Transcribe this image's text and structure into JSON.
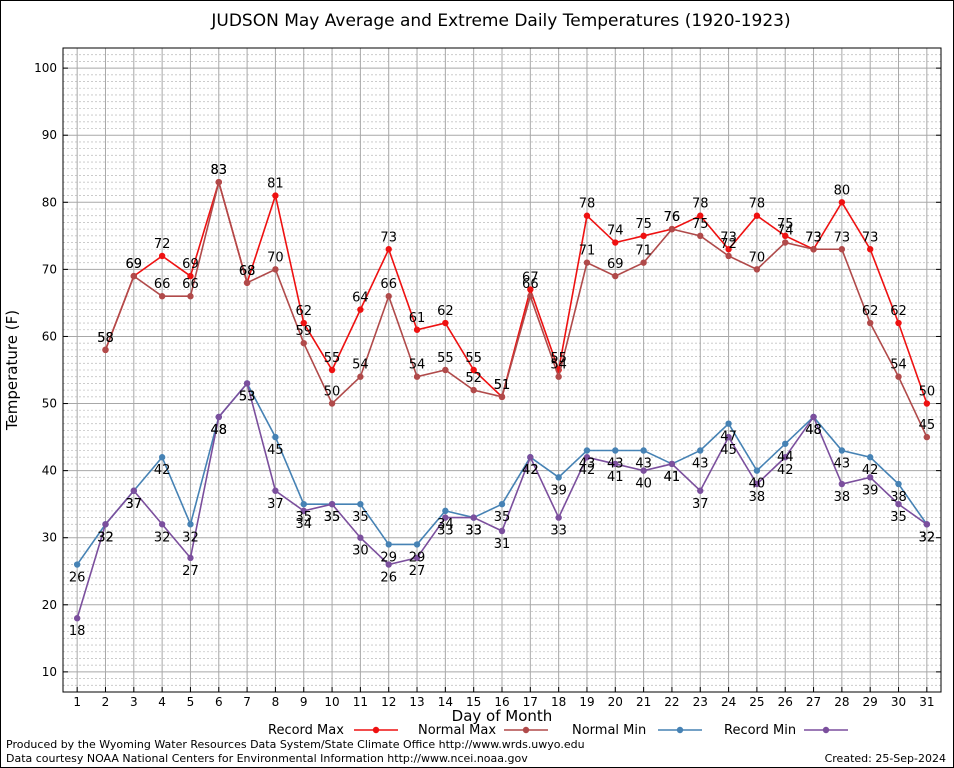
{
  "chart_data": {
    "type": "line",
    "title": "JUDSON May Average and Extreme Daily Temperatures (1920-1923)",
    "xlabel": "Day of Month",
    "ylabel": "Temperature (F)",
    "xlim": [
      0.5,
      31.5
    ],
    "ylim": [
      7,
      103
    ],
    "grid": true,
    "legend_position": "bottom",
    "x": [
      1,
      2,
      3,
      4,
      5,
      6,
      7,
      8,
      9,
      10,
      11,
      12,
      13,
      14,
      15,
      16,
      17,
      18,
      19,
      20,
      21,
      22,
      23,
      24,
      25,
      26,
      27,
      28,
      29,
      30,
      31
    ],
    "x_ticks": [
      "1",
      "2",
      "3",
      "4",
      "5",
      "6",
      "7",
      "8",
      "9",
      "10",
      "11",
      "12",
      "13",
      "14",
      "15",
      "16",
      "17",
      "18",
      "19",
      "20",
      "21",
      "22",
      "23",
      "24",
      "25",
      "26",
      "27",
      "28",
      "29",
      "30",
      "31"
    ],
    "y_ticks": [
      "10",
      "20",
      "30",
      "40",
      "50",
      "60",
      "70",
      "80",
      "90",
      "100"
    ],
    "series": [
      {
        "name": "Record Max",
        "color": "#ee1111",
        "label_position": "above",
        "values": [
          null,
          58,
          69,
          72,
          69,
          83,
          68,
          81,
          62,
          55,
          64,
          73,
          61,
          62,
          55,
          51,
          67,
          55,
          78,
          74,
          75,
          76,
          78,
          73,
          78,
          75,
          73,
          80,
          73,
          62,
          50
        ]
      },
      {
        "name": "Normal Max",
        "color": "#b04a4a",
        "label_position": "above",
        "values": [
          null,
          58,
          69,
          66,
          66,
          83,
          68,
          70,
          59,
          50,
          54,
          66,
          54,
          55,
          52,
          51,
          66,
          54,
          71,
          69,
          71,
          76,
          75,
          72,
          70,
          74,
          73,
          73,
          62,
          54,
          45
        ]
      },
      {
        "name": "Normal Min",
        "color": "#4682b4",
        "label_position": "below",
        "values": [
          26,
          32,
          37,
          42,
          32,
          48,
          53,
          45,
          35,
          35,
          35,
          29,
          29,
          34,
          33,
          35,
          42,
          39,
          43,
          43,
          43,
          41,
          43,
          47,
          40,
          44,
          48,
          43,
          42,
          38,
          32
        ]
      },
      {
        "name": "Record Min",
        "color": "#7b4f9d",
        "label_position": "below",
        "values": [
          18,
          32,
          37,
          32,
          27,
          48,
          53,
          37,
          34,
          35,
          30,
          26,
          27,
          33,
          33,
          31,
          42,
          33,
          42,
          41,
          40,
          41,
          37,
          45,
          38,
          42,
          48,
          38,
          39,
          35,
          32
        ]
      }
    ]
  },
  "footer": {
    "credit_1": "Produced by the Wyoming Water Resources Data System/State Climate Office http://www.wrds.uwyo.edu",
    "credit_2": "Data courtesy NOAA National Centers for Environmental Information http://www.ncei.noaa.gov",
    "created": "Created:  25-Sep-2024"
  }
}
